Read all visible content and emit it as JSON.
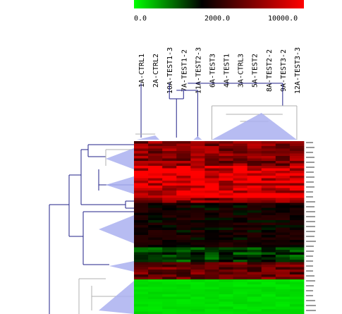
{
  "chart_data": {
    "type": "heatmap",
    "color_scale": {
      "low_label": "0.0",
      "mid_label": "2000.0",
      "high_label": "10000.0",
      "low_color": "#00ff00",
      "mid_color": "#000000",
      "high_color": "#ff0000",
      "stops": [
        0,
        2000,
        10000
      ]
    },
    "columns": [
      "1A-CTRL1",
      "2A-CTRL2",
      "10A-TEST1-3",
      "7A-TEST1-2",
      "11A-TEST2-3",
      "6A-TEST3",
      "4A-TEST1",
      "3A-CTRL3",
      "5A-TEST2",
      "8A-TEST2-2",
      "9A-TEST3-2",
      "12A-TEST3-3"
    ],
    "row_blocks": [
      {
        "rows": 10,
        "level": 6200
      },
      {
        "rows": 13,
        "level": 9000
      },
      {
        "rows": 2,
        "level": 6000
      },
      {
        "rows": 18,
        "level": 2600
      },
      {
        "rows": 6,
        "level": 1500
      },
      {
        "rows": 7,
        "level": 5200
      },
      {
        "rows": 15,
        "level": 250
      }
    ],
    "row_labels_legible": false,
    "colors": {
      "dendrogram_line": "#22228a",
      "subtree_line": "#b0b0b0",
      "collapsed_fill": "#aab0f0"
    }
  }
}
